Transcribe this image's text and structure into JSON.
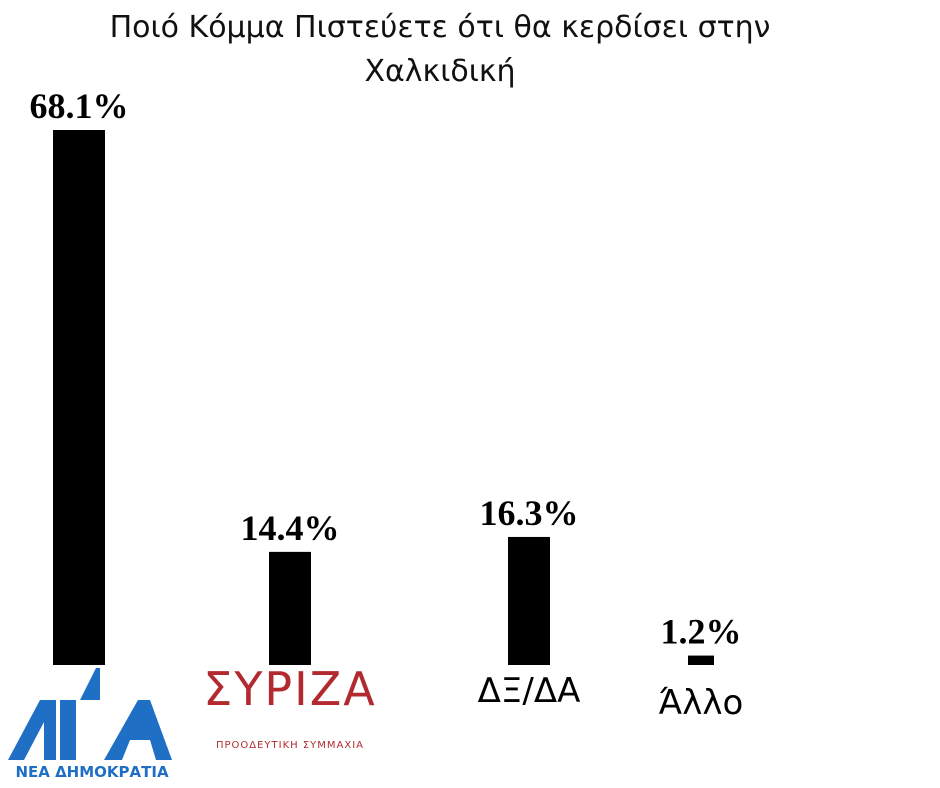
{
  "chart_data": {
    "type": "bar",
    "title": "Ποιό Κόμμα Πιστεύετε ότι θα κερδίσει στην Χαλκιδική",
    "categories": [
      "ΝΕΑ ΔΗΜΟΚΡΑΤΙΑ",
      "ΣΥΡΙΖΑ",
      "ΔΞ/ΔΑ",
      "Άλλο"
    ],
    "category_taglines": [
      null,
      "ΠΡΟΟΔΕΥΤΙΚΗ ΣΥΜΜΑΧΙΑ",
      null,
      null
    ],
    "values": [
      68.1,
      14.4,
      16.3,
      1.2
    ],
    "value_labels": [
      "68.1%",
      "14.4%",
      "16.3%",
      "1.2%"
    ],
    "color": "#000000"
  }
}
